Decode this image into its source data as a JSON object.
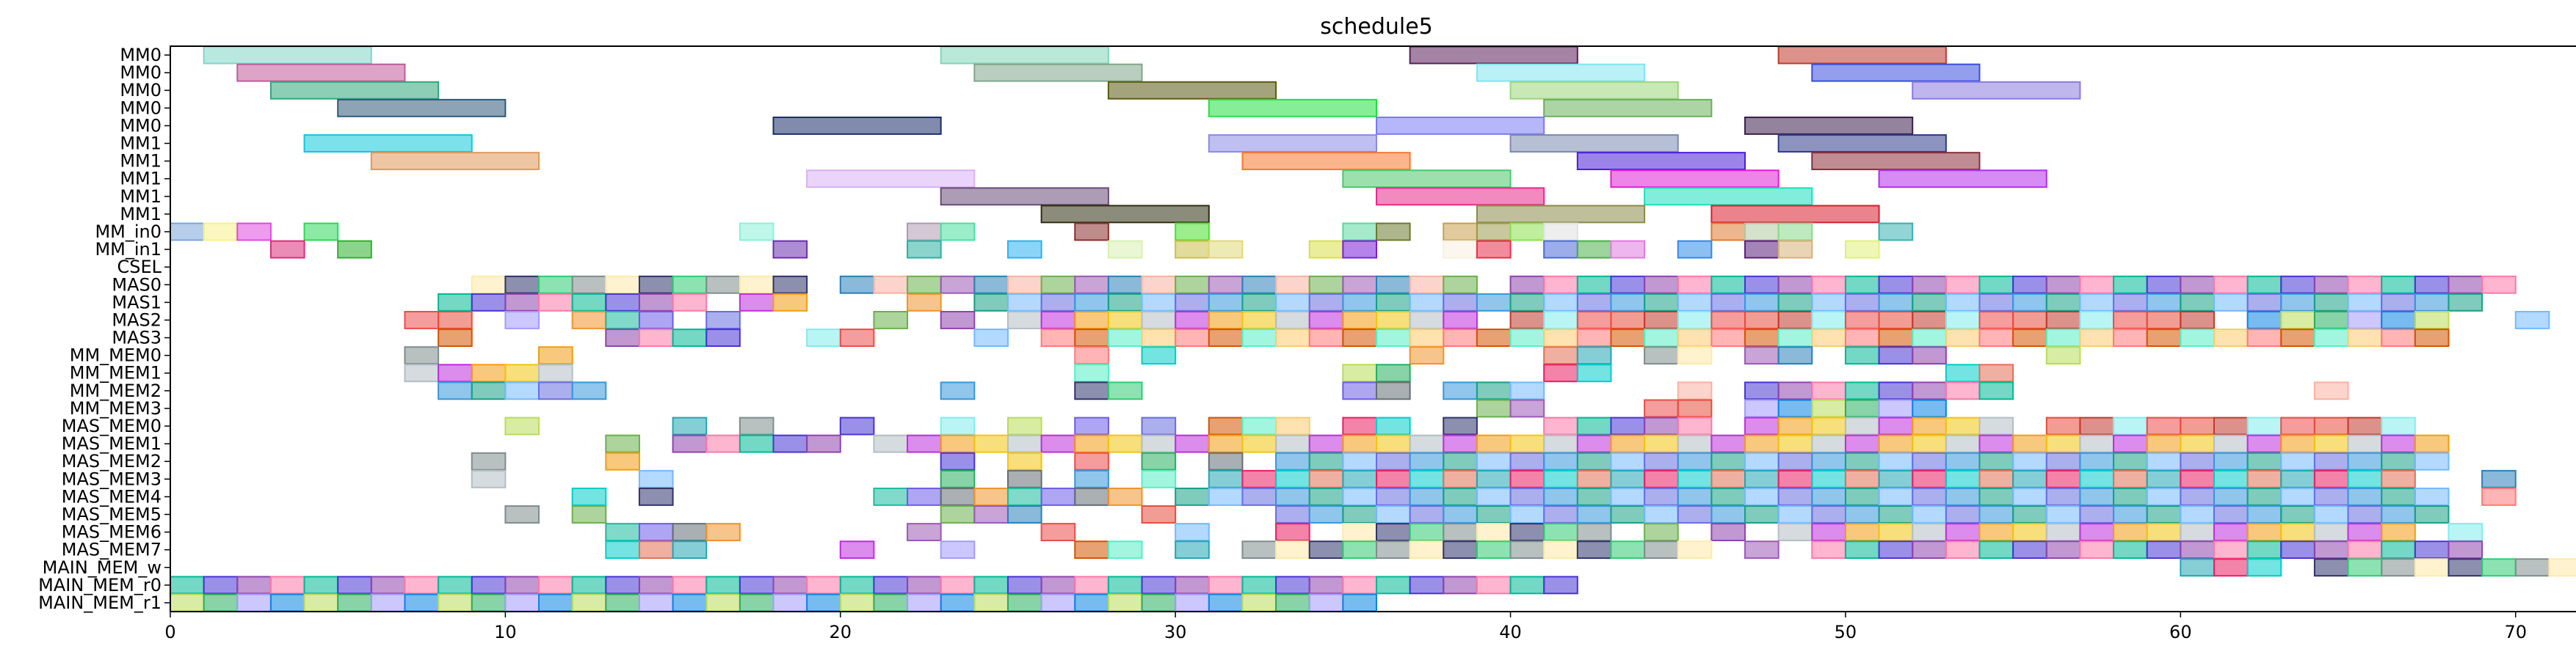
{
  "chart_data": {
    "type": "gantt",
    "title": "schedule5",
    "xlabel": "",
    "ylabel": "",
    "xlim": [
      0,
      72
    ],
    "grid": false,
    "xticks": [
      0,
      10,
      20,
      30,
      40,
      50,
      60,
      70
    ],
    "rows": [
      "MM0",
      "MM0",
      "MM0",
      "MM0",
      "MM0",
      "MM1",
      "MM1",
      "MM1",
      "MM1",
      "MM1",
      "MM_in0",
      "MM_in1",
      "CSEL",
      "MAS0",
      "MAS1",
      "MAS2",
      "MAS3",
      "MM_MEM0",
      "MM_MEM1",
      "MM_MEM2",
      "MM_MEM3",
      "MAS_MEM0",
      "MAS_MEM1",
      "MAS_MEM2",
      "MAS_MEM3",
      "MAS_MEM4",
      "MAS_MEM5",
      "MAS_MEM6",
      "MAS_MEM7",
      "MAIN_MEM_w",
      "MAIN_MEM_r0",
      "MAIN_MEM_r1"
    ],
    "palette": [
      "#9b59b6",
      "#e74c3c",
      "#3498db",
      "#2ecc71",
      "#f39c12",
      "#1abc9c",
      "#e91e63",
      "#8e44ad",
      "#27ae60",
      "#d35400",
      "#2980b9",
      "#c0392b",
      "#16a085",
      "#7f8c8d",
      "#f1c40f",
      "#6c5ce7",
      "#00cec9",
      "#fd79a8",
      "#a29bfe",
      "#55efc4",
      "#fab1a0",
      "#81ecec",
      "#74b9ff",
      "#ffeaa7",
      "#b2bec3",
      "#636e72",
      "#e17055",
      "#00b894",
      "#0984e3",
      "#fdcb6e",
      "#6ab04c",
      "#eb4d4b",
      "#686de0",
      "#30336b",
      "#be2edd",
      "#f0932b",
      "#22a6b3",
      "#4834d4",
      "#badc58",
      "#ff7979"
    ],
    "tasks": [
      {
        "row": 0,
        "start": 1,
        "end": 6,
        "color": "#7fd6c8"
      },
      {
        "row": 0,
        "start": 23,
        "end": 28,
        "color": "#7fd6b8"
      },
      {
        "row": 0,
        "start": 37,
        "end": 42,
        "color": "#5a1e5a"
      },
      {
        "row": 0,
        "start": 48,
        "end": 53,
        "color": "#c0392b"
      },
      {
        "row": 1,
        "start": 2,
        "end": 7,
        "color": "#c25a9a"
      },
      {
        "row": 1,
        "start": 24,
        "end": 29,
        "color": "#7fa68a"
      },
      {
        "row": 1,
        "start": 39,
        "end": 44,
        "color": "#7fe6ee"
      },
      {
        "row": 1,
        "start": 49,
        "end": 54,
        "color": "#3a4ee0"
      },
      {
        "row": 2,
        "start": 3,
        "end": 8,
        "color": "#2ea87a"
      },
      {
        "row": 2,
        "start": 28,
        "end": 33,
        "color": "#5a5a10"
      },
      {
        "row": 2,
        "start": 40,
        "end": 45,
        "color": "#9ad67a"
      },
      {
        "row": 2,
        "start": 52,
        "end": 57,
        "color": "#8a7ae0"
      },
      {
        "row": 3,
        "start": 5,
        "end": 10,
        "color": "#2e5a7a"
      },
      {
        "row": 3,
        "start": 31,
        "end": 36,
        "color": "#22e040"
      },
      {
        "row": 3,
        "start": 41,
        "end": 46,
        "color": "#6ab05a"
      },
      {
        "row": 4,
        "start": 18,
        "end": 23,
        "color": "#1a2e6a"
      },
      {
        "row": 4,
        "start": 36,
        "end": 41,
        "color": "#7a7af6"
      },
      {
        "row": 4,
        "start": 47,
        "end": 52,
        "color": "#3a1e4a"
      },
      {
        "row": 5,
        "start": 4,
        "end": 9,
        "color": "#10c8d8"
      },
      {
        "row": 5,
        "start": 31,
        "end": 36,
        "color": "#8a8ae6"
      },
      {
        "row": 5,
        "start": 40,
        "end": 45,
        "color": "#7a8ab0"
      },
      {
        "row": 5,
        "start": 48,
        "end": 53,
        "color": "#2e3a8a"
      },
      {
        "row": 6,
        "start": 6,
        "end": 11,
        "color": "#e0985a"
      },
      {
        "row": 6,
        "start": 32,
        "end": 37,
        "color": "#f8782e"
      },
      {
        "row": 6,
        "start": 42,
        "end": 47,
        "color": "#4a1ed8"
      },
      {
        "row": 6,
        "start": 49,
        "end": 54,
        "color": "#8a2e3a"
      },
      {
        "row": 7,
        "start": 19,
        "end": 24,
        "color": "#dab0f4"
      },
      {
        "row": 7,
        "start": 35,
        "end": 40,
        "color": "#4ac86a"
      },
      {
        "row": 7,
        "start": 43,
        "end": 48,
        "color": "#e01ed8"
      },
      {
        "row": 7,
        "start": 51,
        "end": 56,
        "color": "#b42ee8"
      },
      {
        "row": 8,
        "start": 23,
        "end": 28,
        "color": "#6a4a7a"
      },
      {
        "row": 8,
        "start": 36,
        "end": 41,
        "color": "#e82a8a"
      },
      {
        "row": 8,
        "start": 44,
        "end": 49,
        "color": "#1ae0c0"
      },
      {
        "row": 9,
        "start": 26,
        "end": 31,
        "color": "#2e2e10"
      },
      {
        "row": 9,
        "start": 39,
        "end": 44,
        "color": "#8a8a4a"
      },
      {
        "row": 9,
        "start": 46,
        "end": 51,
        "color": "#d81e2e"
      },
      {
        "row": 10,
        "start": 0,
        "end": 1,
        "color": "#7aa6d8"
      },
      {
        "row": 10,
        "start": 1,
        "end": 2,
        "color": "#f8f08a"
      },
      {
        "row": 10,
        "start": 2,
        "end": 3,
        "color": "#e04ae0"
      },
      {
        "row": 10,
        "start": 4,
        "end": 5,
        "color": "#2ed85a"
      },
      {
        "row": 10,
        "start": 17,
        "end": 18,
        "color": "#8af0d8"
      },
      {
        "row": 10,
        "start": 22,
        "end": 23,
        "color": "#b09ab0"
      },
      {
        "row": 10,
        "start": 23,
        "end": 24,
        "color": "#4ae0a0"
      },
      {
        "row": 10,
        "start": 27,
        "end": 28,
        "color": "#8a2e2e"
      },
      {
        "row": 10,
        "start": 30,
        "end": 31,
        "color": "#4ae02e"
      },
      {
        "row": 10,
        "start": 35,
        "end": 36,
        "color": "#5ad8a0"
      },
      {
        "row": 10,
        "start": 36,
        "end": 37,
        "color": "#6a7a2e"
      },
      {
        "row": 10,
        "start": 38,
        "end": 39,
        "color": "#c8a04a"
      },
      {
        "row": 10,
        "start": 39,
        "end": 40,
        "color": "#9a9a4a"
      },
      {
        "row": 10,
        "start": 40,
        "end": 41,
        "color": "#8ae04a"
      },
      {
        "row": 10,
        "start": 41,
        "end": 42,
        "color": "#e0e0e0"
      },
      {
        "row": 10,
        "start": 46,
        "end": 47,
        "color": "#e07a2e"
      },
      {
        "row": 10,
        "start": 47,
        "end": 48,
        "color": "#b0c8a0"
      },
      {
        "row": 10,
        "start": 48,
        "end": 49,
        "color": "#8ad88a"
      },
      {
        "row": 10,
        "start": 51,
        "end": 52,
        "color": "#3ab0b0"
      },
      {
        "row": 11,
        "start": 3,
        "end": 4,
        "color": "#d82e7a"
      },
      {
        "row": 11,
        "start": 5,
        "end": 6,
        "color": "#2eb02e"
      },
      {
        "row": 11,
        "start": 18,
        "end": 19,
        "color": "#6a2eb0"
      },
      {
        "row": 11,
        "start": 22,
        "end": 23,
        "color": "#2eb0a0"
      },
      {
        "row": 11,
        "start": 25,
        "end": 26,
        "color": "#2eb0f0"
      },
      {
        "row": 11,
        "start": 28,
        "end": 29,
        "color": "#d8f0b0"
      },
      {
        "row": 11,
        "start": 30,
        "end": 31,
        "color": "#c8c04a"
      },
      {
        "row": 11,
        "start": 31,
        "end": 32,
        "color": "#e0d87a"
      },
      {
        "row": 11,
        "start": 34,
        "end": 35,
        "color": "#d8e04a"
      },
      {
        "row": 11,
        "start": 35,
        "end": 36,
        "color": "#7a1ed8"
      },
      {
        "row": 11,
        "start": 38,
        "end": 39,
        "color": "#f8f0e0"
      },
      {
        "row": 11,
        "start": 39,
        "end": 40,
        "color": "#e82e4a"
      },
      {
        "row": 11,
        "start": 41,
        "end": 42,
        "color": "#4a6ad8"
      },
      {
        "row": 11,
        "start": 42,
        "end": 43,
        "color": "#4ab04a"
      },
      {
        "row": 11,
        "start": 43,
        "end": 44,
        "color": "#e07ae0"
      },
      {
        "row": 11,
        "start": 45,
        "end": 46,
        "color": "#2e8ae8"
      },
      {
        "row": 11,
        "start": 47,
        "end": 48,
        "color": "#5a1e7a"
      },
      {
        "row": 11,
        "start": 48,
        "end": 49,
        "color": "#d8b07a"
      },
      {
        "row": 11,
        "start": 50,
        "end": 51,
        "color": "#e0f07a"
      }
    ],
    "dense_rows": {
      "MAS0": [
        9,
        10,
        11,
        12,
        13,
        14,
        15,
        16,
        17,
        18,
        20,
        21,
        22,
        23,
        24,
        25,
        26,
        27,
        28,
        29,
        30,
        31,
        32,
        33,
        34,
        35,
        36,
        37,
        38,
        40,
        41,
        42,
        43,
        44,
        45,
        46,
        47,
        48,
        49,
        50,
        51,
        52,
        53,
        54,
        55,
        56,
        57,
        58,
        59,
        60,
        61,
        62,
        63,
        64,
        65,
        66,
        67,
        68,
        69
      ],
      "MAS1": [
        8,
        9,
        10,
        11,
        12,
        13,
        14,
        15,
        17,
        18,
        22,
        24,
        25,
        26,
        27,
        28,
        29,
        30,
        31,
        32,
        33,
        34,
        35,
        36,
        37,
        38,
        39,
        40,
        41,
        42,
        43,
        44,
        45,
        46,
        47,
        48,
        49,
        50,
        51,
        52,
        53,
        54,
        55,
        56,
        57,
        58,
        59,
        60,
        61,
        62,
        63,
        64,
        65,
        66,
        67,
        68
      ],
      "MAS2": [
        7,
        8,
        10,
        12,
        13,
        14,
        16,
        21,
        23,
        25,
        26,
        27,
        28,
        29,
        30,
        31,
        32,
        33,
        34,
        35,
        36,
        37,
        38,
        40,
        41,
        42,
        43,
        44,
        45,
        46,
        47,
        48,
        49,
        50,
        51,
        52,
        53,
        54,
        55,
        56,
        57,
        58,
        59,
        60,
        62,
        63,
        64,
        65,
        66,
        67,
        70
      ],
      "MAS3": [
        8,
        13,
        14,
        15,
        16,
        19,
        20,
        24,
        26,
        27,
        28,
        29,
        30,
        31,
        32,
        33,
        34,
        35,
        36,
        37,
        38,
        39,
        40,
        41,
        42,
        43,
        44,
        45,
        46,
        47,
        48,
        49,
        50,
        51,
        52,
        53,
        54,
        55,
        56,
        57,
        58,
        59,
        60,
        61,
        62,
        63,
        64,
        65,
        66,
        67
      ],
      "MM_MEM0": [
        7,
        11,
        27,
        29,
        37,
        41,
        42,
        44,
        45,
        47,
        48,
        50,
        51,
        52,
        56
      ],
      "MM_MEM1": [
        7,
        8,
        9,
        10,
        11,
        27,
        35,
        36,
        41,
        42,
        53,
        54
      ],
      "MM_MEM2": [
        8,
        9,
        10,
        11,
        12,
        23,
        27,
        28,
        35,
        36,
        38,
        39,
        40,
        45,
        47,
        48,
        49,
        50,
        51,
        52,
        53,
        54,
        64
      ],
      "MM_MEM3": [
        39,
        40,
        44,
        45,
        47,
        48,
        49,
        50,
        51,
        52
      ],
      "MAS_MEM0": [
        10,
        15,
        17,
        20,
        23,
        25,
        27,
        29,
        31,
        32,
        33,
        35,
        36,
        38,
        41,
        42,
        43,
        44,
        45,
        47,
        48,
        49,
        50,
        51,
        52,
        53,
        54,
        56,
        57,
        58,
        59,
        60,
        61,
        62,
        63,
        64,
        65,
        66
      ],
      "MAS_MEM1": [
        13,
        15,
        16,
        17,
        18,
        19,
        21,
        22,
        23,
        24,
        25,
        26,
        27,
        28,
        29,
        30,
        31,
        32,
        33,
        34,
        35,
        36,
        37,
        38,
        39,
        40,
        41,
        42,
        43,
        44,
        45,
        46,
        47,
        48,
        49,
        50,
        51,
        52,
        53,
        54,
        55,
        56,
        57,
        58,
        59,
        60,
        61,
        62,
        63,
        64,
        65,
        66,
        67
      ],
      "MAS_MEM2": [
        9,
        13,
        23,
        25,
        27,
        29,
        31,
        33,
        34,
        35,
        36,
        37,
        38,
        39,
        40,
        41,
        42,
        43,
        44,
        45,
        46,
        47,
        48,
        49,
        50,
        51,
        52,
        53,
        54,
        55,
        56,
        57,
        58,
        59,
        60,
        61,
        62,
        63,
        64,
        65,
        66,
        67
      ],
      "MAS_MEM3": [
        9,
        14,
        23,
        25,
        27,
        29,
        31,
        32,
        33,
        34,
        35,
        36,
        37,
        38,
        39,
        40,
        41,
        42,
        43,
        44,
        45,
        46,
        47,
        48,
        49,
        50,
        51,
        52,
        53,
        54,
        55,
        56,
        57,
        58,
        59,
        60,
        61,
        62,
        63,
        64,
        65,
        66,
        69
      ],
      "MAS_MEM4": [
        12,
        14,
        21,
        22,
        23,
        24,
        25,
        26,
        27,
        28,
        30,
        31,
        32,
        33,
        34,
        35,
        36,
        37,
        38,
        39,
        40,
        41,
        42,
        43,
        44,
        45,
        46,
        47,
        48,
        49,
        50,
        51,
        52,
        53,
        54,
        55,
        56,
        57,
        58,
        59,
        60,
        61,
        62,
        63,
        64,
        65,
        66,
        67,
        69
      ],
      "MAS_MEM5": [
        10,
        12,
        23,
        24,
        25,
        29,
        33,
        34,
        35,
        36,
        37,
        38,
        39,
        40,
        41,
        42,
        43,
        44,
        45,
        46,
        47,
        48,
        49,
        50,
        51,
        52,
        53,
        54,
        55,
        56,
        57,
        58,
        59,
        60,
        61,
        62,
        63,
        64,
        65,
        66,
        67
      ],
      "MAS_MEM6": [
        13,
        14,
        15,
        16,
        22,
        26,
        30,
        33,
        35,
        36,
        37,
        38,
        39,
        40,
        41,
        42,
        44,
        46,
        48,
        49,
        50,
        51,
        52,
        53,
        54,
        55,
        56,
        57,
        58,
        59,
        60,
        61,
        62,
        63,
        64,
        65,
        66,
        68
      ],
      "MAS_MEM7": [
        13,
        14,
        15,
        20,
        23,
        27,
        28,
        30,
        32,
        33,
        34,
        35,
        36,
        37,
        38,
        39,
        40,
        41,
        42,
        43,
        44,
        45,
        47,
        49,
        50,
        51,
        52,
        53,
        54,
        55,
        56,
        57,
        58,
        59,
        60,
        61,
        62,
        63,
        64,
        65,
        66,
        67,
        68
      ],
      "MAIN_MEM_w": [
        60,
        61,
        62,
        64,
        65,
        66,
        67,
        68,
        69,
        70,
        71
      ],
      "MAIN_MEM_r0": [
        0,
        1,
        2,
        3,
        4,
        5,
        6,
        7,
        8,
        9,
        10,
        11,
        12,
        13,
        14,
        15,
        16,
        17,
        18,
        19,
        20,
        21,
        22,
        23,
        24,
        25,
        26,
        27,
        28,
        29,
        30,
        31,
        32,
        33,
        34,
        35,
        36,
        37,
        38,
        39,
        40,
        41
      ],
      "MAIN_MEM_r1": [
        0,
        1,
        2,
        3,
        4,
        5,
        6,
        7,
        8,
        9,
        10,
        11,
        12,
        13,
        14,
        15,
        16,
        17,
        18,
        19,
        20,
        21,
        22,
        23,
        24,
        25,
        26,
        27,
        28,
        29,
        30,
        31,
        32,
        33,
        34,
        35
      ]
    }
  }
}
